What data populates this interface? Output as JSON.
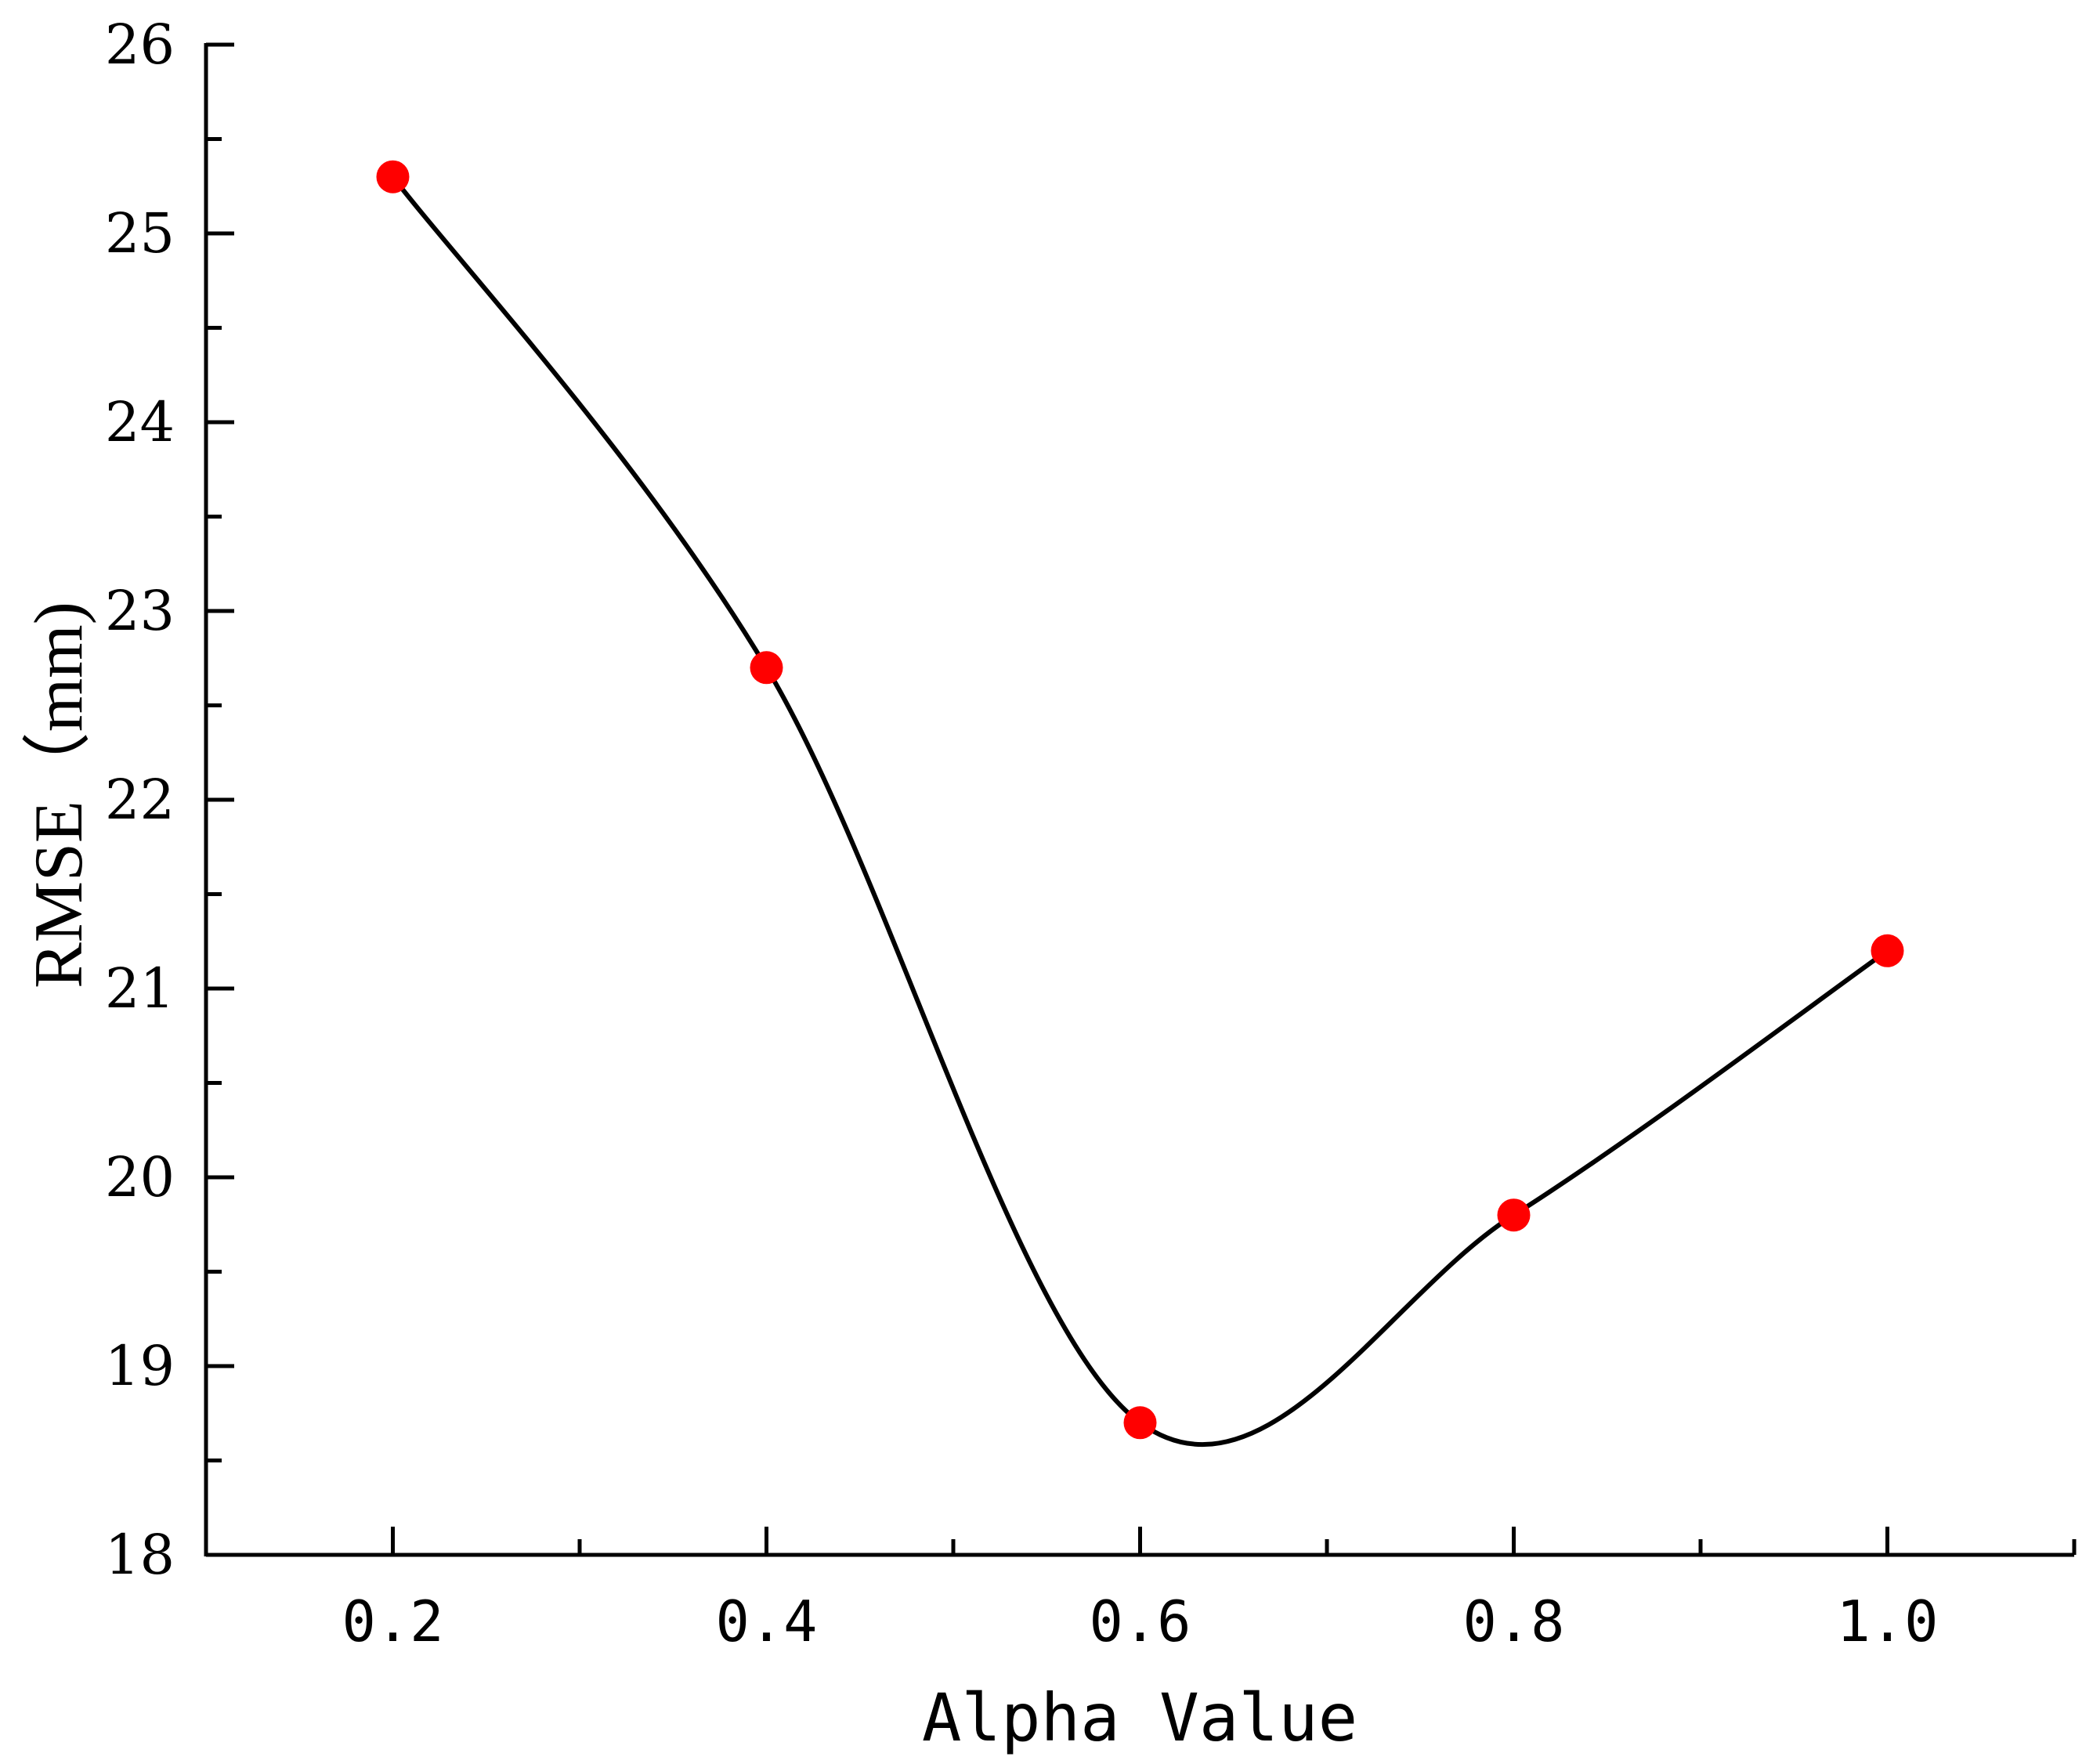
{
  "chart_data": {
    "type": "line",
    "title": "",
    "xlabel": "Alpha Value",
    "ylabel": "RMSE（mm)",
    "x_tick_labels": [
      "0.2",
      "0.4",
      "0.6",
      "0.8",
      "1.0"
    ],
    "y_tick_labels": [
      "18",
      "19",
      "20",
      "21",
      "22",
      "23",
      "24",
      "25",
      "26"
    ],
    "xlim": [
      0.1,
      1.1
    ],
    "ylim": [
      18,
      26
    ],
    "grid": false,
    "legend": "none",
    "line_style": "smooth spline",
    "series": [
      {
        "x": [
          0.2,
          0.4,
          0.6,
          0.8,
          1.0
        ],
        "y": [
          25.3,
          22.7,
          18.7,
          19.8,
          21.2
        ],
        "line_color": "#000000",
        "marker_color": "#ff0000"
      }
    ]
  }
}
